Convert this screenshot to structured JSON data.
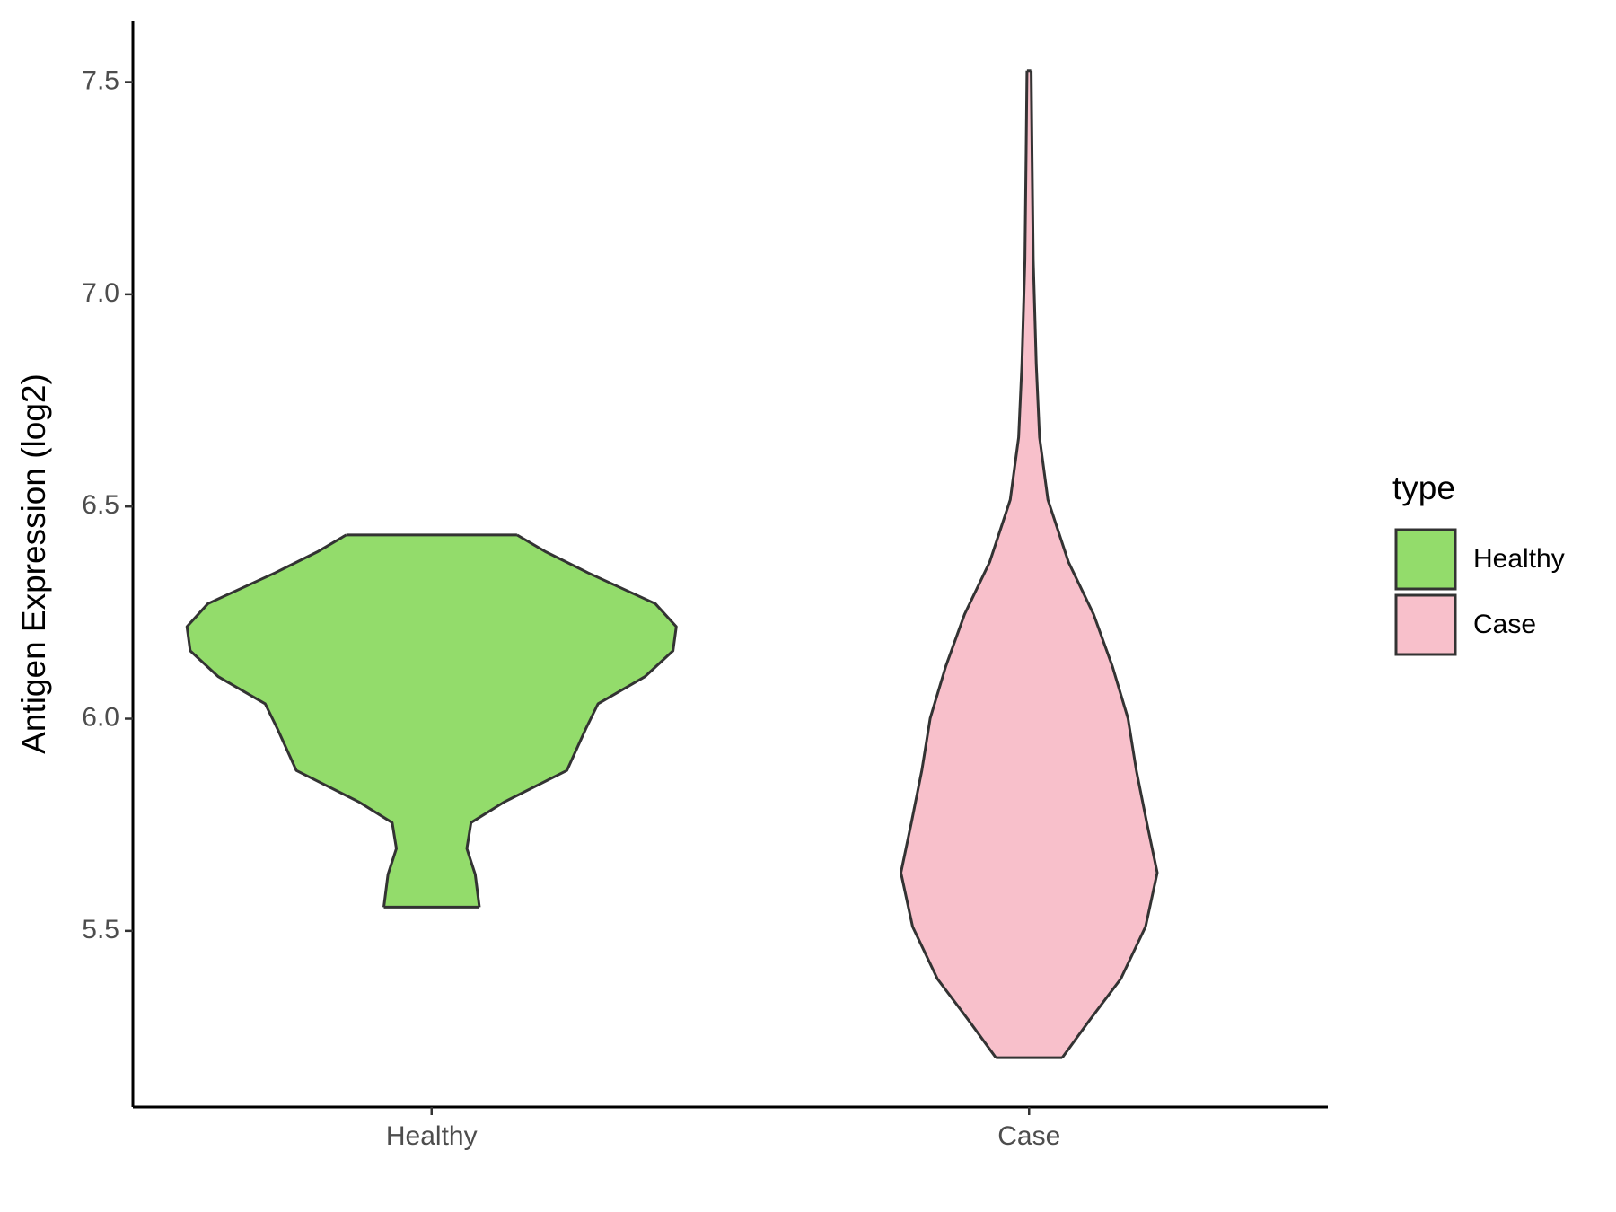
{
  "chart_data": {
    "type": "violin",
    "y_label": "Antigen Expression (log2)",
    "categories": [
      "Healthy",
      "Case"
    ],
    "legend_title": "type",
    "legend": "right",
    "ylim": [
      5.085,
      7.645
    ],
    "yticks": [
      {
        "value": 5.5,
        "label": "5.5"
      },
      {
        "value": 6,
        "label": "6.0"
      },
      {
        "value": 6.5,
        "label": "6.5"
      },
      {
        "value": 7,
        "label": "7.0"
      },
      {
        "value": 7.5,
        "label": "7.5"
      }
    ],
    "series": [
      {
        "name": "Healthy",
        "color": "#93dc6b",
        "y": [
          5.556,
          5.633,
          5.694,
          5.755,
          5.804,
          5.878,
          5.976,
          6.035,
          6.099,
          6.16,
          6.217,
          6.271,
          6.344,
          6.393,
          6.433
        ],
        "width": [
          0.16,
          0.146,
          0.118,
          0.132,
          0.244,
          0.453,
          0.516,
          0.557,
          0.714,
          0.808,
          0.819,
          0.749,
          0.523,
          0.383,
          0.286
        ]
      },
      {
        "name": "Case",
        "color": "#f8c0cb",
        "y": [
          5.201,
          5.289,
          5.387,
          5.51,
          5.637,
          5.755,
          5.878,
          6.001,
          6.123,
          6.246,
          6.369,
          6.516,
          6.663,
          6.835,
          7.08,
          7.326,
          7.527
        ],
        "width": [
          0.111,
          0.202,
          0.307,
          0.39,
          0.429,
          0.394,
          0.359,
          0.331,
          0.279,
          0.216,
          0.132,
          0.063,
          0.035,
          0.024,
          0.014,
          0.01,
          0.007
        ]
      }
    ]
  }
}
